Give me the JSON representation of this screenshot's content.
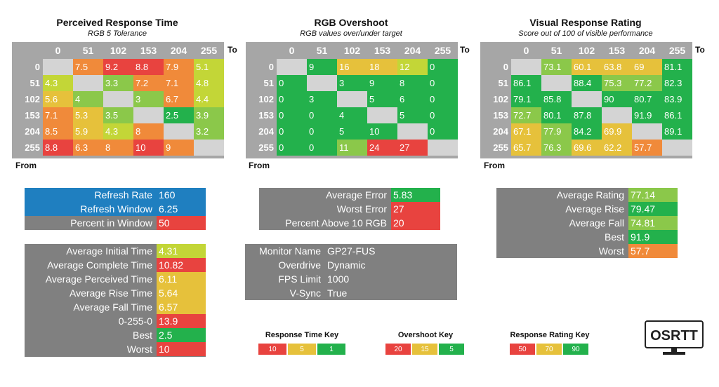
{
  "colors": {
    "green": "#23b14c",
    "lightgreen": "#8bc84a",
    "yellowgreen": "#c3d637",
    "yellow": "#e6c13b",
    "orange": "#f08a3a",
    "red": "#e8433f",
    "empty": "#d4d4d4",
    "header": "#a6a6a6",
    "panel": "#808080",
    "blue": "#1f7fc0"
  },
  "labels": {
    "to": "To",
    "from": "From"
  },
  "logo_text": "OSRTT",
  "chart_data": [
    {
      "type": "table",
      "title": "Perceived Response Time",
      "subtitle": "RGB 5 Tolerance",
      "columns": [
        "0",
        "51",
        "102",
        "153",
        "204",
        "255"
      ],
      "rows": [
        "0",
        "51",
        "102",
        "153",
        "204",
        "255"
      ],
      "values": [
        [
          null,
          "7.5",
          "9.2",
          "8.8",
          "7.9",
          "5.1"
        ],
        [
          "4.3",
          null,
          "3.3",
          "7.2",
          "7.1",
          "4.8"
        ],
        [
          "5.6",
          "4",
          null,
          "3",
          "6.7",
          "4.4"
        ],
        [
          "7.1",
          "5.3",
          "3.5",
          null,
          "2.5",
          "3.9"
        ],
        [
          "8.5",
          "5.9",
          "4.3",
          "8",
          null,
          "3.2"
        ],
        [
          "8.8",
          "6.3",
          "8",
          "10",
          "9",
          null
        ]
      ],
      "colors": [
        [
          null,
          "orange",
          "red",
          "red",
          "orange",
          "yellowgreen"
        ],
        [
          "yellowgreen",
          null,
          "lightgreen",
          "orange",
          "orange",
          "yellowgreen"
        ],
        [
          "yellow",
          "lightgreen",
          null,
          "lightgreen",
          "orange",
          "yellowgreen"
        ],
        [
          "orange",
          "yellow",
          "lightgreen",
          null,
          "green",
          "lightgreen"
        ],
        [
          "orange",
          "yellow",
          "yellowgreen",
          "orange",
          null,
          "lightgreen"
        ],
        [
          "red",
          "orange",
          "orange",
          "red",
          "orange",
          null
        ]
      ]
    },
    {
      "type": "table",
      "title": "RGB Overshoot",
      "subtitle": "RGB values over/under target",
      "columns": [
        "0",
        "51",
        "102",
        "153",
        "204",
        "255"
      ],
      "rows": [
        "0",
        "51",
        "102",
        "153",
        "204",
        "255"
      ],
      "values": [
        [
          null,
          "9",
          "16",
          "18",
          "12",
          "0"
        ],
        [
          "0",
          null,
          "3",
          "9",
          "8",
          "0"
        ],
        [
          "0",
          "3",
          null,
          "5",
          "6",
          "0"
        ],
        [
          "0",
          "0",
          "4",
          null,
          "5",
          "0"
        ],
        [
          "0",
          "0",
          "5",
          "10",
          null,
          "0"
        ],
        [
          "0",
          "0",
          "11",
          "24",
          "27",
          null
        ]
      ],
      "colors": [
        [
          null,
          "green",
          "yellow",
          "yellow",
          "yellowgreen",
          "green"
        ],
        [
          "green",
          null,
          "green",
          "green",
          "green",
          "green"
        ],
        [
          "green",
          "green",
          null,
          "green",
          "green",
          "green"
        ],
        [
          "green",
          "green",
          "green",
          null,
          "green",
          "green"
        ],
        [
          "green",
          "green",
          "green",
          "green",
          null,
          "green"
        ],
        [
          "green",
          "green",
          "lightgreen",
          "red",
          "red",
          null
        ]
      ]
    },
    {
      "type": "table",
      "title": "Visual Response Rating",
      "subtitle": "Score out of 100 of visible performance",
      "columns": [
        "0",
        "51",
        "102",
        "153",
        "204",
        "255"
      ],
      "rows": [
        "0",
        "51",
        "102",
        "153",
        "204",
        "255"
      ],
      "values": [
        [
          null,
          "73.1",
          "60.1",
          "63.8",
          "69",
          "81.1"
        ],
        [
          "86.1",
          null,
          "88.4",
          "75.3",
          "77.2",
          "82.3"
        ],
        [
          "79.1",
          "85.8",
          null,
          "90",
          "80.7",
          "83.9"
        ],
        [
          "72.7",
          "80.1",
          "87.8",
          null,
          "91.9",
          "86.1"
        ],
        [
          "67.1",
          "77.9",
          "84.2",
          "69.9",
          null,
          "89.1"
        ],
        [
          "65.7",
          "76.3",
          "69.6",
          "62.2",
          "57.7",
          null
        ]
      ],
      "colors": [
        [
          null,
          "lightgreen",
          "yellow",
          "yellow",
          "yellow",
          "green"
        ],
        [
          "green",
          null,
          "green",
          "lightgreen",
          "lightgreen",
          "green"
        ],
        [
          "green",
          "green",
          null,
          "green",
          "green",
          "green"
        ],
        [
          "lightgreen",
          "green",
          "green",
          null,
          "green",
          "green"
        ],
        [
          "yellow",
          "lightgreen",
          "green",
          "yellow",
          null,
          "green"
        ],
        [
          "yellow",
          "lightgreen",
          "yellow",
          "yellow",
          "orange",
          null
        ]
      ]
    }
  ],
  "panels": {
    "refresh": [
      {
        "label": "Refresh Rate",
        "value": "160",
        "lc": "blue",
        "vc": "blue"
      },
      {
        "label": "Refresh Window",
        "value": "6.25",
        "lc": "blue",
        "vc": "blue"
      },
      {
        "label": "Percent in Window",
        "value": "50",
        "lc": "panel",
        "vc": "red"
      }
    ],
    "response": [
      {
        "label": "Average Initial Time",
        "value": "4.31",
        "vc": "yellowgreen"
      },
      {
        "label": "Average Complete Time",
        "value": "10.82",
        "vc": "red"
      },
      {
        "label": "Average Perceived Time",
        "value": "6.11",
        "vc": "yellow"
      },
      {
        "label": "Average Rise Time",
        "value": "5.64",
        "vc": "yellow"
      },
      {
        "label": "Average Fall Time",
        "value": "6.57",
        "vc": "yellow"
      },
      {
        "label": "0-255-0",
        "value": "13.9",
        "vc": "red"
      },
      {
        "label": "Best",
        "value": "2.5",
        "vc": "green"
      },
      {
        "label": "Worst",
        "value": "10",
        "vc": "red"
      }
    ],
    "overshoot": [
      {
        "label": "Average Error",
        "value": "5.83",
        "vc": "green"
      },
      {
        "label": "Worst Error",
        "value": "27",
        "vc": "red"
      },
      {
        "label": "Percent Above 10 RGB",
        "value": "20",
        "vc": "red"
      }
    ],
    "monitor": [
      {
        "label": "Monitor Name",
        "value": "GP27-FUS"
      },
      {
        "label": "Overdrive",
        "value": "Dynamic"
      },
      {
        "label": "FPS Limit",
        "value": "1000"
      },
      {
        "label": "V-Sync",
        "value": "True"
      }
    ],
    "rating": [
      {
        "label": "Average Rating",
        "value": "77.14",
        "vc": "lightgreen"
      },
      {
        "label": "Average Rise",
        "value": "79.47",
        "vc": "green"
      },
      {
        "label": "Average Fall",
        "value": "74.81",
        "vc": "lightgreen"
      },
      {
        "label": "Best",
        "value": "91.9",
        "vc": "green"
      },
      {
        "label": "Worst",
        "value": "57.7",
        "vc": "orange"
      }
    ]
  },
  "keys": [
    {
      "title": "Response Time Key",
      "values": [
        "10",
        "5",
        "1"
      ],
      "colors": [
        "red",
        "yellow",
        "green"
      ]
    },
    {
      "title": "Overshoot Key",
      "values": [
        "20",
        "15",
        "5"
      ],
      "colors": [
        "red",
        "yellow",
        "green"
      ]
    },
    {
      "title": "Response Rating Key",
      "values": [
        "50",
        "70",
        "90"
      ],
      "colors": [
        "red",
        "yellow",
        "green"
      ]
    }
  ]
}
